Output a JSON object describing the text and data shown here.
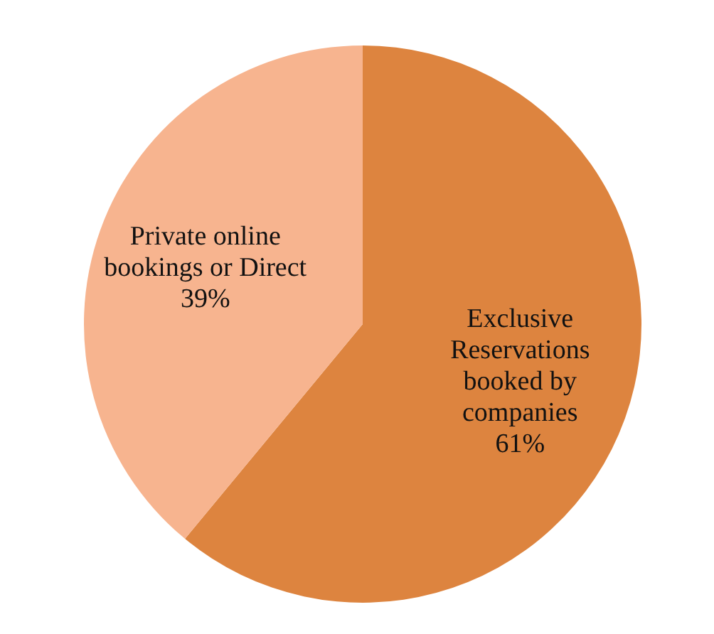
{
  "chart_data": {
    "type": "pie",
    "categories": [
      "Exclusive Reservations booked by companies",
      "Private online bookings or Direct"
    ],
    "values": [
      61,
      39
    ],
    "value_labels": [
      "61%",
      "39%"
    ],
    "colors": [
      "#dd843f",
      "#f7b48f"
    ],
    "legend": false
  }
}
